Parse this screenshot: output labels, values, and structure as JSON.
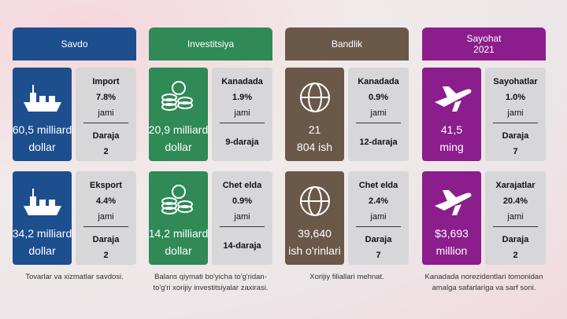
{
  "columns": [
    {
      "header": [
        "Savdo"
      ],
      "color": "#1d4f8f",
      "cards": [
        {
          "value": [
            "60,5 milliard",
            "dollar"
          ],
          "label": "Import",
          "percent": "7.8%",
          "unit": "jami",
          "rank": [
            "Daraja",
            "2"
          ]
        },
        {
          "value": [
            "34,2 milliard",
            "dollar"
          ],
          "label": "Eksport",
          "percent": "4.4%",
          "unit": "jami",
          "rank": [
            "Daraja",
            "2"
          ]
        }
      ],
      "footer": [
        "Tovarlar va xizmatlar savdosi."
      ]
    },
    {
      "header": [
        "Investitsiya"
      ],
      "color": "#2f8a55",
      "cards": [
        {
          "value": [
            "20,9 milliard",
            "dollar"
          ],
          "label": "Kanadada",
          "percent": "1.9%",
          "unit": "jami",
          "rank": [
            "9-daraja"
          ]
        },
        {
          "value": [
            "14,2 milliard",
            "dollar"
          ],
          "label": "Chet elda",
          "percent": "0.9%",
          "unit": "jami",
          "rank": [
            "14-daraja"
          ]
        }
      ],
      "footer": [
        "Balans qiymati bo'yicha to'g'ridan-",
        "to'g'ri xorijiy investitsiyalar zaxirasi."
      ]
    },
    {
      "header": [
        "Bandlik"
      ],
      "color": "#6a5849",
      "cards": [
        {
          "value": [
            "21",
            "804 ish"
          ],
          "label": "Kanadada",
          "percent": "0.9%",
          "unit": "jami",
          "rank": [
            "12-daraja"
          ]
        },
        {
          "value": [
            "39,640",
            "ish o'rinlari"
          ],
          "label": "Chet elda",
          "percent": "2.4%",
          "unit": "jami",
          "rank": [
            "Daraja",
            "7"
          ]
        }
      ],
      "footer": [
        "Xorijiy filiallari mehnat."
      ]
    },
    {
      "header": [
        "Sayohat",
        "2021"
      ],
      "color": "#8c1d8c",
      "cards": [
        {
          "value": [
            "41,5",
            "ming"
          ],
          "label": "Sayohatlar",
          "percent": "1.0%",
          "unit": "jami",
          "rank": [
            "Daraja",
            "7"
          ]
        },
        {
          "value": [
            "$3,693",
            "million"
          ],
          "label": "Xarajatlar",
          "percent": "20.4%",
          "unit": "jami",
          "rank": [
            "Daraja",
            "2"
          ]
        }
      ],
      "footer": [
        "Kanadada norezidentlari tomonidan",
        "amalga safarlariga va sarf soni."
      ]
    }
  ]
}
